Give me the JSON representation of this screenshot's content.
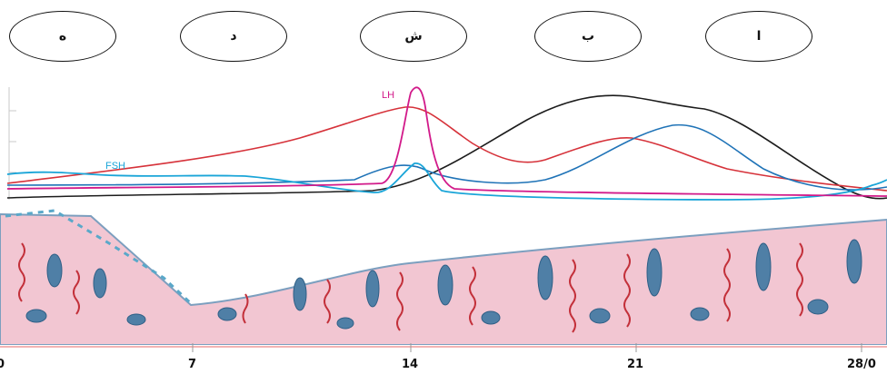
{
  "ovals": [
    {
      "label": "ه"
    },
    {
      "label": "د"
    },
    {
      "label": "ش"
    },
    {
      "label": "ب"
    },
    {
      "label": "ا"
    }
  ],
  "curve_labels": {
    "lh": "LH",
    "fsh": "FSH"
  },
  "colors": {
    "lh": "#d21a8a",
    "fsh": "#1aa5d8",
    "estrogen": "#d6323a",
    "progesterone": "#1c1c1c",
    "blue_curve": "#1f73b7",
    "tissue_pink": "#f2c6d2",
    "gland_blue": "#4f7fa6",
    "vessel_red": "#c3303a"
  },
  "axis": {
    "ticks": [
      "0",
      "7",
      "14",
      "21",
      "28/0"
    ]
  }
}
